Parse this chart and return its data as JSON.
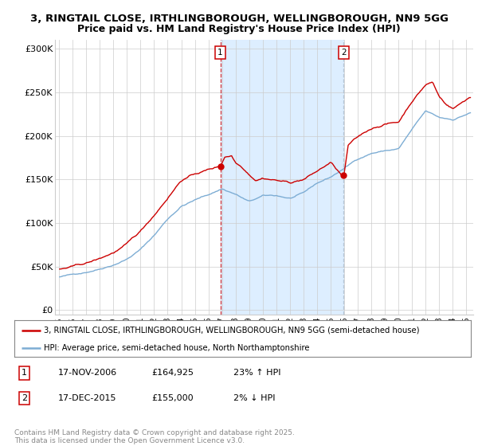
{
  "title1": "3, RINGTAIL CLOSE, IRTHLINGBOROUGH, WELLINGBOROUGH, NN9 5GG",
  "title2": "Price paid vs. HM Land Registry's House Price Index (HPI)",
  "ylabel_ticks": [
    "£0",
    "£50K",
    "£100K",
    "£150K",
    "£200K",
    "£250K",
    "£300K"
  ],
  "ytick_vals": [
    0,
    50000,
    100000,
    150000,
    200000,
    250000,
    300000
  ],
  "ylim": [
    -5000,
    310000
  ],
  "marker1_x": 2006.88,
  "marker2_x": 2015.96,
  "shade_color": "#ddeeff",
  "marker1_line_color": "#cc0000",
  "marker2_line_color": "#aabbcc",
  "legend_line1": "3, RINGTAIL CLOSE, IRTHLINGBOROUGH, WELLINGBOROUGH, NN9 5GG (semi-detached house)",
  "legend_line2": "HPI: Average price, semi-detached house, North Northamptonshire",
  "ann1_date": "17-NOV-2006",
  "ann1_price": "£164,925",
  "ann1_hpi": "23% ↑ HPI",
  "ann2_date": "17-DEC-2015",
  "ann2_price": "£155,000",
  "ann2_hpi": "2% ↓ HPI",
  "footer": "Contains HM Land Registry data © Crown copyright and database right 2025.\nThis data is licensed under the Open Government Licence v3.0.",
  "red_color": "#cc0000",
  "blue_color": "#7dadd4",
  "bg_color": "#ffffff",
  "grid_color": "#cccccc"
}
